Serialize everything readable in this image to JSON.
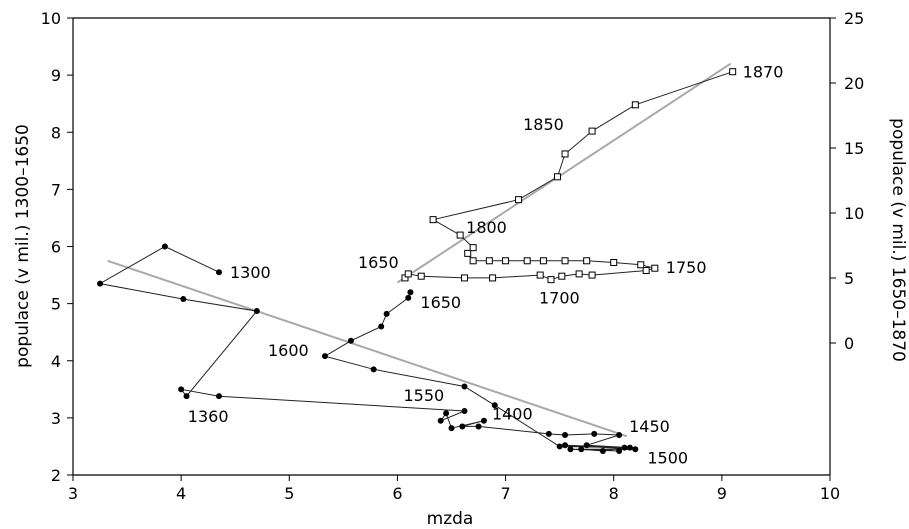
{
  "chart_data": {
    "type": "scatter",
    "xlabel": "mzda",
    "ylabel_left": "populace (v mil.) 1300–1650",
    "ylabel_right": "populace (v mil.) 1650–1870",
    "xlim": [
      3,
      10
    ],
    "ylim_left": [
      2,
      10
    ],
    "ylim_right_labeled": [
      0,
      25
    ],
    "x_ticks": [
      3,
      4,
      5,
      6,
      7,
      8,
      9,
      10
    ],
    "y_left_ticks": [
      2,
      3,
      4,
      5,
      6,
      7,
      8,
      9,
      10
    ],
    "y_right_ticks": [
      0,
      5,
      10,
      15,
      20,
      25
    ],
    "series": [
      {
        "marker": "filled-circle",
        "axis": "left",
        "points": [
          [
            4.35,
            5.55
          ],
          [
            3.85,
            6.0
          ],
          [
            3.25,
            5.35
          ],
          [
            4.02,
            5.08
          ],
          [
            4.7,
            4.87
          ],
          [
            4.05,
            3.38
          ],
          [
            4.0,
            3.5
          ],
          [
            4.35,
            3.38
          ],
          [
            6.62,
            3.12
          ],
          [
            6.4,
            2.95
          ],
          [
            6.45,
            3.08
          ],
          [
            6.5,
            2.82
          ],
          [
            6.8,
            2.95
          ],
          [
            6.6,
            2.85
          ],
          [
            6.75,
            2.85
          ],
          [
            7.4,
            2.72
          ],
          [
            7.55,
            2.7
          ],
          [
            7.82,
            2.72
          ],
          [
            8.05,
            2.7
          ],
          [
            7.75,
            2.52
          ],
          [
            8.15,
            2.48
          ],
          [
            7.55,
            2.52
          ],
          [
            8.2,
            2.45
          ],
          [
            7.6,
            2.45
          ],
          [
            8.05,
            2.42
          ],
          [
            7.7,
            2.45
          ],
          [
            7.9,
            2.42
          ],
          [
            8.1,
            2.48
          ],
          [
            7.5,
            2.5
          ],
          [
            6.9,
            3.22
          ],
          [
            6.62,
            3.55
          ],
          [
            5.78,
            3.85
          ],
          [
            5.33,
            4.08
          ],
          [
            5.57,
            4.35
          ],
          [
            5.85,
            4.6
          ],
          [
            5.9,
            4.82
          ],
          [
            6.1,
            5.1
          ],
          [
            6.12,
            5.2
          ]
        ],
        "labels": [
          {
            "text": "1300",
            "x": 4.35,
            "y": 5.55
          },
          {
            "text": "1360",
            "x": 4.08,
            "y": 3.38
          },
          {
            "text": "1400",
            "x": 6.8,
            "y": 2.95
          },
          {
            "text": "1450",
            "x": 8.05,
            "y": 2.7
          },
          {
            "text": "1500",
            "x": 8.2,
            "y": 2.45
          },
          {
            "text": "1550",
            "x": 6.62,
            "y": 3.12
          },
          {
            "text": "1600",
            "x": 5.33,
            "y": 4.08
          },
          {
            "text": "1650",
            "x": 6.12,
            "y": 5.2
          }
        ],
        "trend": {
          "x1": 3.32,
          "y1": 5.75,
          "x2": 8.12,
          "y2": 2.68
        }
      },
      {
        "marker": "open-square",
        "axis": "right",
        "points": [
          [
            6.07,
            5.45
          ],
          [
            6.1,
            5.52
          ],
          [
            6.22,
            5.48
          ],
          [
            6.62,
            5.45
          ],
          [
            6.88,
            5.45
          ],
          [
            7.32,
            5.5
          ],
          [
            7.42,
            5.42
          ],
          [
            7.52,
            5.48
          ],
          [
            7.68,
            5.52
          ],
          [
            7.8,
            5.5
          ],
          [
            8.3,
            5.58
          ],
          [
            8.38,
            5.62
          ],
          [
            8.25,
            5.68
          ],
          [
            8.0,
            5.72
          ],
          [
            7.75,
            5.75
          ],
          [
            7.55,
            5.75
          ],
          [
            7.35,
            5.75
          ],
          [
            7.2,
            5.75
          ],
          [
            7.0,
            5.75
          ],
          [
            6.85,
            5.75
          ],
          [
            6.7,
            5.75
          ],
          [
            6.65,
            5.88
          ],
          [
            6.7,
            5.98
          ],
          [
            6.58,
            6.2
          ],
          [
            6.33,
            6.47
          ],
          [
            7.12,
            6.82
          ],
          [
            7.48,
            7.22
          ],
          [
            7.55,
            7.62
          ],
          [
            7.8,
            8.02
          ],
          [
            8.2,
            8.48
          ],
          [
            9.1,
            9.06
          ]
        ],
        "labels": [
          {
            "text": "1650",
            "x": 6.07,
            "y": 5.45
          },
          {
            "text": "1700",
            "x": 7.42,
            "y": 5.42
          },
          {
            "text": "1750",
            "x": 8.38,
            "y": 5.62
          },
          {
            "text": "1800",
            "x": 6.58,
            "y": 6.2
          },
          {
            "text": "1850",
            "x": 7.8,
            "y": 8.02
          },
          {
            "text": "1870",
            "x": 9.1,
            "y": 9.06
          }
        ],
        "trend": {
          "x1": 6.0,
          "y1": 5.37,
          "x2": 9.08,
          "y2": 9.2
        }
      }
    ]
  }
}
